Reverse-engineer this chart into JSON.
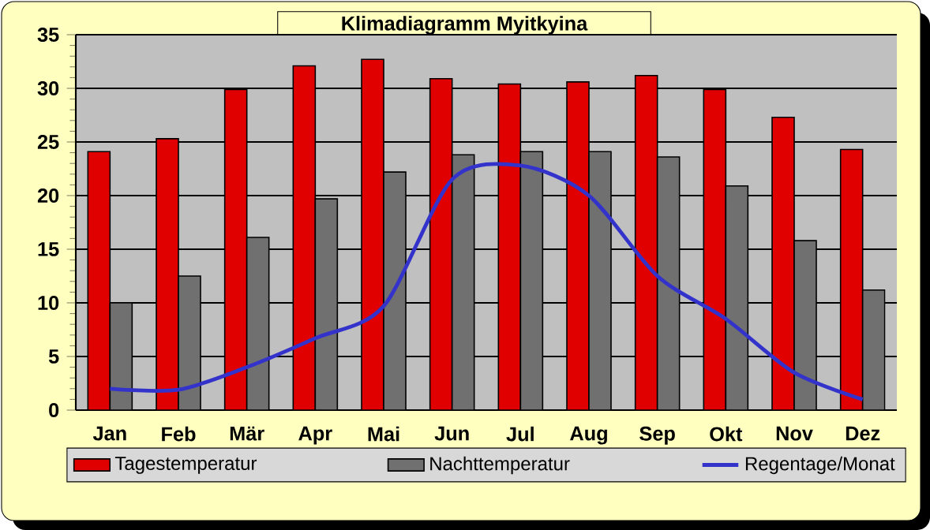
{
  "chart_data": {
    "type": "bar",
    "title": "Klimadiagramm Myitkyina",
    "categories": [
      "Jan",
      "Feb",
      "Mär",
      "Apr",
      "Mai",
      "Jun",
      "Jul",
      "Aug",
      "Sep",
      "Okt",
      "Nov",
      "Dez"
    ],
    "series": [
      {
        "name": "Tagestemperatur",
        "color": "#e00000",
        "values": [
          24.1,
          25.3,
          29.9,
          32.1,
          32.7,
          30.9,
          30.4,
          30.6,
          31.2,
          29.9,
          27.3,
          24.3
        ]
      },
      {
        "name": "Nachttemperatur",
        "color": "#707070",
        "values": [
          10.0,
          12.5,
          16.1,
          19.7,
          22.2,
          23.8,
          24.1,
          24.1,
          23.6,
          20.9,
          15.8,
          11.2
        ]
      },
      {
        "name": "Regentage/Monat",
        "type": "line",
        "color": "#3333cc",
        "values": [
          2.0,
          1.9,
          4.0,
          6.7,
          9.7,
          21.5,
          22.8,
          20.0,
          12.5,
          8.5,
          3.5,
          1.0
        ]
      }
    ],
    "ylim": [
      0,
      35
    ],
    "yticks": [
      0,
      5,
      10,
      15,
      20,
      25,
      30,
      35
    ],
    "grid": "y",
    "legend": "bottom"
  }
}
